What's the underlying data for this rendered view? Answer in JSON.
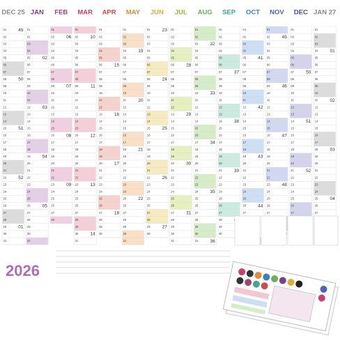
{
  "year": "2026",
  "days": [
    "01",
    "02",
    "03",
    "04",
    "05",
    "06",
    "07",
    "08",
    "09",
    "10",
    "11",
    "12",
    "13",
    "14",
    "15",
    "16",
    "17",
    "18",
    "19",
    "20",
    "21",
    "22",
    "23",
    "24",
    "25",
    "26",
    "27",
    "28",
    "29",
    "30",
    "31"
  ],
  "months": [
    {
      "name": "DEC 25",
      "color": "#8a8a8a",
      "shade": "#dcdcdc",
      "days": 31,
      "weeks": [
        [
          "01",
          "49"
        ],
        [
          "08",
          "50"
        ],
        [
          "15",
          "51"
        ],
        [
          "22",
          "52"
        ],
        [
          "29",
          "01"
        ]
      ]
    },
    {
      "name": "JAN",
      "color": "#7b3f8c",
      "shade": "#e3cfe6",
      "days": 31,
      "weeks": [
        [
          "05",
          "02"
        ],
        [
          "12",
          "03"
        ],
        [
          "19",
          "04"
        ],
        [
          "26",
          "05"
        ]
      ]
    },
    {
      "name": "FEB",
      "color": "#a0457a",
      "shade": "#efcfe0",
      "days": 28,
      "weeks": [
        [
          "02",
          "06"
        ],
        [
          "09",
          "07"
        ],
        [
          "16",
          "08"
        ],
        [
          "23",
          "09"
        ]
      ]
    },
    {
      "name": "MAR",
      "color": "#c9406b",
      "shade": "#f4cfd9",
      "days": 31,
      "weeks": [
        [
          "02",
          "10"
        ],
        [
          "09",
          "11"
        ],
        [
          "16",
          "12"
        ],
        [
          "23",
          "13"
        ],
        [
          "30",
          "14"
        ]
      ]
    },
    {
      "name": "APR",
      "color": "#d04c4c",
      "shade": "#f6d2cd",
      "days": 30,
      "weeks": [
        [
          "06",
          "15"
        ],
        [
          "13",
          "16"
        ],
        [
          "20",
          "17"
        ],
        [
          "27",
          "18"
        ]
      ]
    },
    {
      "name": "MAY",
      "color": "#e08a3a",
      "shade": "#f9dfc5",
      "days": 31,
      "weeks": [
        [
          "04",
          "19"
        ],
        [
          "11",
          "20"
        ],
        [
          "18",
          "21"
        ],
        [
          "25",
          "22"
        ]
      ]
    },
    {
      "name": "JUN",
      "color": "#d4b23a",
      "shade": "#f5ebbf",
      "days": 30,
      "weeks": [
        [
          "01",
          "23"
        ],
        [
          "08",
          "24"
        ],
        [
          "15",
          "25"
        ],
        [
          "22",
          "26"
        ],
        [
          "29",
          "27"
        ]
      ]
    },
    {
      "name": "JUL",
      "color": "#9fb538",
      "shade": "#e6efc0",
      "days": 31,
      "weeks": [
        [
          "06",
          "28"
        ],
        [
          "13",
          "29"
        ],
        [
          "20",
          "30"
        ],
        [
          "27",
          "31"
        ]
      ]
    },
    {
      "name": "AUG",
      "color": "#6dae5a",
      "shade": "#d5ecc9",
      "days": 31,
      "weeks": [
        [
          "03",
          "32"
        ],
        [
          "10",
          "33"
        ],
        [
          "17",
          "34"
        ],
        [
          "24",
          "35"
        ],
        [
          "31",
          "36"
        ]
      ]
    },
    {
      "name": "SEP",
      "color": "#3fa88f",
      "shade": "#cbebe0",
      "days": 30,
      "weeks": [
        [
          "07",
          "37"
        ],
        [
          "14",
          "38"
        ],
        [
          "21",
          "39"
        ],
        [
          "28",
          "40"
        ]
      ]
    },
    {
      "name": "OCT",
      "color": "#3d7fbf",
      "shade": "#cddff3",
      "days": 31,
      "weeks": [
        [
          "05",
          "41"
        ],
        [
          "12",
          "42"
        ],
        [
          "19",
          "43"
        ],
        [
          "26",
          "44"
        ]
      ]
    },
    {
      "name": "NOV",
      "color": "#4f62b8",
      "shade": "#d3d8f1",
      "days": 30,
      "weeks": [
        [
          "02",
          "45"
        ],
        [
          "09",
          "46"
        ],
        [
          "16",
          "47"
        ],
        [
          "23",
          "48"
        ],
        [
          "30",
          "49"
        ]
      ]
    },
    {
      "name": "DEC",
      "color": "#4a4f9e",
      "shade": "#d4d3ec",
      "days": 31,
      "weeks": [
        [
          "07",
          "50"
        ],
        [
          "14",
          "51"
        ],
        [
          "21",
          "52"
        ],
        [
          "28",
          "53"
        ]
      ]
    },
    {
      "name": "JAN 27",
      "color": "#8a8a8a",
      "shade": "#dcdcdc",
      "days": 31,
      "weeks": [
        [
          "04",
          "01"
        ],
        [
          "11",
          "02"
        ],
        [
          "18",
          "03"
        ],
        [
          "25",
          "04"
        ]
      ]
    }
  ]
}
